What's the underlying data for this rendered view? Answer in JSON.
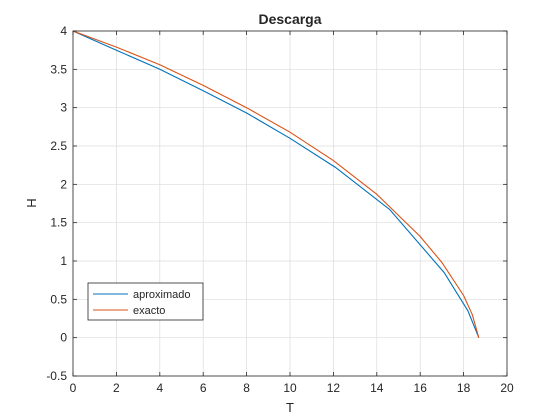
{
  "chart_data": {
    "type": "line",
    "title": "Descarga",
    "xlabel": "T",
    "ylabel": "H",
    "xlim": [
      0,
      20
    ],
    "ylim": [
      -0.5,
      4
    ],
    "xticks": [
      0,
      2,
      4,
      6,
      8,
      10,
      12,
      14,
      16,
      18,
      20
    ],
    "xtick_labels": [
      "0",
      "2",
      "4",
      "6",
      "8",
      "10",
      "12",
      "14",
      "16",
      "18",
      "20"
    ],
    "yticks": [
      -0.5,
      0,
      0.5,
      1,
      1.5,
      2,
      2.5,
      3,
      3.5,
      4
    ],
    "ytick_labels": [
      "-0.5",
      "0",
      "0.5",
      "1",
      "1.5",
      "2",
      "2.5",
      "3",
      "3.5",
      "4"
    ],
    "grid": true,
    "legend_position": "bottom-left",
    "series": [
      {
        "name": "aproximado",
        "color": "#0072BD",
        "x": [
          0,
          2,
          4,
          6,
          8,
          10,
          12.1,
          14.6,
          17.1,
          18.2,
          18.7
        ],
        "y": [
          4.0,
          3.75,
          3.5,
          3.22,
          2.93,
          2.6,
          2.22,
          1.67,
          0.85,
          0.35,
          0.0
        ]
      },
      {
        "name": "exacto",
        "color": "#D95319",
        "x": [
          0,
          2,
          4,
          6,
          8,
          10,
          12,
          14,
          16,
          17,
          18,
          18.4,
          18.7
        ],
        "y": [
          4.0,
          3.79,
          3.56,
          3.29,
          3.0,
          2.68,
          2.31,
          1.87,
          1.32,
          0.98,
          0.55,
          0.3,
          0.0
        ]
      }
    ]
  }
}
